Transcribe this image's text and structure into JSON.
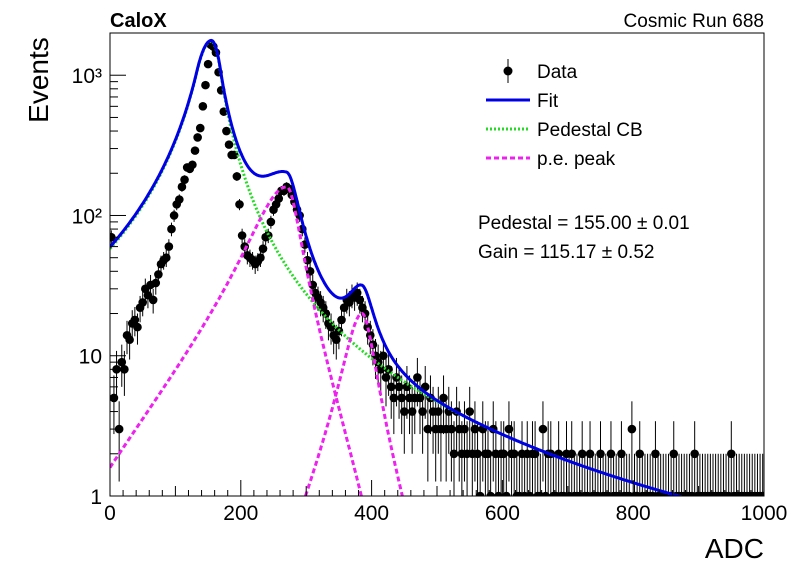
{
  "header": {
    "left_label": "CaloX",
    "right_label": "Cosmic Run 688"
  },
  "chart_data": {
    "type": "scatter",
    "title": "",
    "xlabel": "ADC",
    "ylabel": "Events",
    "xlim": [
      0,
      1000
    ],
    "ylim": [
      1,
      2000
    ],
    "y_scale": "log",
    "grid": false,
    "legend_position": "top-right",
    "x_ticks": [
      {
        "value": 0,
        "label": "0"
      },
      {
        "value": 200,
        "label": "200"
      },
      {
        "value": 400,
        "label": "400"
      },
      {
        "value": 600,
        "label": "600"
      },
      {
        "value": 800,
        "label": "800"
      },
      {
        "value": 1000,
        "label": "1000"
      }
    ],
    "y_ticks": [
      {
        "value": 1,
        "label": "1"
      },
      {
        "value": 10,
        "label": "10"
      },
      {
        "value": 100,
        "label": "10²"
      },
      {
        "value": 1000,
        "label": "10³"
      }
    ],
    "legend": [
      {
        "key": "data",
        "label": "Data",
        "color": "#000000",
        "style": "marker"
      },
      {
        "key": "fit",
        "label": "Fit",
        "color": "#0000e6",
        "style": "solid"
      },
      {
        "key": "pedestal",
        "label": "Pedestal CB",
        "color": "#22dd22",
        "style": "dotted"
      },
      {
        "key": "pe",
        "label": "p.e. peak",
        "color": "#ee22ee",
        "style": "dashed"
      }
    ],
    "annotations": [
      {
        "key": "pedestal",
        "text": "Pedestal = 155.00 ± 0.01"
      },
      {
        "key": "gain",
        "text": "Gain = 115.17 ± 0.52"
      }
    ],
    "fit_model": {
      "pedestal": {
        "A": 1750,
        "mean": 155.0,
        "sigma_left": 22,
        "sigma_right": 14,
        "alpha": 1.0,
        "n": 2.2
      },
      "pe_peaks": [
        {
          "A": 160,
          "mean": 270.2,
          "sigma_left": 55,
          "sigma_right": 21
        },
        {
          "A": 20,
          "mean": 385.3,
          "sigma_left": 28,
          "sigma_right": 20
        }
      ]
    },
    "series": [
      {
        "key": "data",
        "name": "Data",
        "points": [
          [
            2,
            70
          ],
          [
            6,
            5
          ],
          [
            10,
            8
          ],
          [
            14,
            3
          ],
          [
            18,
            9
          ],
          [
            22,
            8
          ],
          [
            26,
            14
          ],
          [
            30,
            13
          ],
          [
            34,
            17
          ],
          [
            38,
            18
          ],
          [
            42,
            16
          ],
          [
            46,
            22
          ],
          [
            50,
            24
          ],
          [
            54,
            30
          ],
          [
            58,
            27
          ],
          [
            62,
            32
          ],
          [
            66,
            25
          ],
          [
            70,
            33
          ],
          [
            74,
            38
          ],
          [
            78,
            45
          ],
          [
            82,
            48
          ],
          [
            86,
            50
          ],
          [
            90,
            60
          ],
          [
            94,
            80
          ],
          [
            98,
            100
          ],
          [
            102,
            120
          ],
          [
            106,
            130
          ],
          [
            110,
            160
          ],
          [
            114,
            180
          ],
          [
            118,
            220
          ],
          [
            122,
            215
          ],
          [
            126,
            230
          ],
          [
            130,
            290
          ],
          [
            134,
            360
          ],
          [
            138,
            420
          ],
          [
            142,
            600
          ],
          [
            146,
            850
          ],
          [
            150,
            1200
          ],
          [
            154,
            1650
          ],
          [
            158,
            1600
          ],
          [
            162,
            1450
          ],
          [
            166,
            1050
          ],
          [
            170,
            780
          ],
          [
            174,
            550
          ],
          [
            178,
            400
          ],
          [
            182,
            320
          ],
          [
            186,
            270
          ],
          [
            190,
            270
          ],
          [
            194,
            190
          ],
          [
            198,
            120
          ],
          [
            202,
            72
          ],
          [
            206,
            60
          ],
          [
            210,
            52
          ],
          [
            214,
            50
          ],
          [
            218,
            48
          ],
          [
            222,
            45
          ],
          [
            226,
            47
          ],
          [
            230,
            50
          ],
          [
            234,
            58
          ],
          [
            238,
            70
          ],
          [
            242,
            72
          ],
          [
            246,
            90
          ],
          [
            250,
            110
          ],
          [
            254,
            120
          ],
          [
            258,
            132
          ],
          [
            262,
            150
          ],
          [
            266,
            150
          ],
          [
            270,
            160
          ],
          [
            274,
            155
          ],
          [
            278,
            140
          ],
          [
            282,
            125
          ],
          [
            286,
            110
          ],
          [
            290,
            100
          ],
          [
            294,
            80
          ],
          [
            298,
            62
          ],
          [
            302,
            48
          ],
          [
            306,
            40
          ],
          [
            310,
            32
          ],
          [
            314,
            28
          ],
          [
            318,
            26
          ],
          [
            322,
            24
          ],
          [
            326,
            22
          ],
          [
            330,
            20
          ],
          [
            334,
            17
          ],
          [
            338,
            16
          ],
          [
            342,
            14
          ],
          [
            346,
            13
          ],
          [
            350,
            15
          ],
          [
            354,
            18
          ],
          [
            358,
            22
          ],
          [
            362,
            25
          ],
          [
            366,
            24
          ],
          [
            370,
            27
          ],
          [
            374,
            26
          ],
          [
            378,
            28
          ],
          [
            382,
            25
          ],
          [
            386,
            22
          ],
          [
            390,
            20
          ],
          [
            394,
            16
          ],
          [
            398,
            14
          ],
          [
            402,
            12
          ],
          [
            406,
            10
          ],
          [
            410,
            9
          ],
          [
            414,
            8
          ],
          [
            418,
            10
          ],
          [
            422,
            7
          ],
          [
            426,
            8
          ],
          [
            430,
            6
          ],
          [
            434,
            5
          ],
          [
            438,
            7
          ],
          [
            442,
            6
          ],
          [
            446,
            5
          ],
          [
            450,
            4
          ],
          [
            454,
            6
          ],
          [
            458,
            5
          ],
          [
            462,
            4
          ],
          [
            466,
            5
          ],
          [
            470,
            7
          ],
          [
            474,
            5
          ],
          [
            478,
            4
          ],
          [
            482,
            6
          ],
          [
            486,
            3
          ],
          [
            490,
            5
          ],
          [
            494,
            4
          ],
          [
            498,
            3
          ],
          [
            502,
            4
          ],
          [
            506,
            3
          ],
          [
            510,
            5
          ],
          [
            514,
            3
          ],
          [
            518,
            4
          ],
          [
            522,
            3
          ],
          [
            526,
            2
          ],
          [
            530,
            4
          ],
          [
            534,
            3
          ],
          [
            538,
            2
          ],
          [
            542,
            3
          ],
          [
            546,
            2
          ],
          [
            550,
            4
          ],
          [
            554,
            2
          ],
          [
            558,
            3
          ],
          [
            562,
            2
          ],
          [
            566,
            1
          ],
          [
            570,
            3
          ],
          [
            574,
            2
          ],
          [
            578,
            2
          ],
          [
            582,
            1
          ],
          [
            586,
            3
          ],
          [
            590,
            2
          ],
          [
            594,
            1
          ],
          [
            598,
            2
          ],
          [
            602,
            2
          ],
          [
            606,
            1
          ],
          [
            610,
            3
          ],
          [
            614,
            2
          ],
          [
            618,
            2
          ],
          [
            622,
            1
          ],
          [
            626,
            1
          ],
          [
            630,
            2
          ],
          [
            634,
            1
          ],
          [
            638,
            2
          ],
          [
            642,
            1
          ],
          [
            646,
            2
          ],
          [
            650,
            2
          ],
          [
            654,
            1
          ],
          [
            658,
            1
          ],
          [
            662,
            3
          ],
          [
            666,
            1
          ],
          [
            670,
            2
          ],
          [
            674,
            2
          ],
          [
            678,
            1
          ],
          [
            682,
            1
          ],
          [
            686,
            2
          ],
          [
            690,
            1
          ],
          [
            694,
            1
          ],
          [
            698,
            2
          ],
          [
            702,
            1
          ],
          [
            706,
            2
          ],
          [
            710,
            1
          ],
          [
            714,
            1
          ],
          [
            718,
            1
          ],
          [
            722,
            2
          ],
          [
            726,
            1
          ],
          [
            730,
            1
          ],
          [
            734,
            2
          ],
          [
            738,
            1
          ],
          [
            742,
            1
          ],
          [
            746,
            1
          ],
          [
            750,
            2
          ],
          [
            754,
            1
          ],
          [
            758,
            1
          ],
          [
            762,
            1
          ],
          [
            766,
            2
          ],
          [
            770,
            1
          ],
          [
            774,
            1
          ],
          [
            778,
            1
          ],
          [
            782,
            2
          ],
          [
            786,
            1
          ],
          [
            790,
            1
          ],
          [
            794,
            1
          ],
          [
            798,
            3
          ],
          [
            802,
            1
          ],
          [
            806,
            1
          ],
          [
            810,
            2
          ],
          [
            814,
            1
          ],
          [
            818,
            1
          ],
          [
            822,
            1
          ],
          [
            826,
            1
          ],
          [
            830,
            1
          ],
          [
            834,
            2
          ],
          [
            838,
            1
          ],
          [
            842,
            1
          ],
          [
            846,
            1
          ],
          [
            850,
            1
          ],
          [
            854,
            1
          ],
          [
            858,
            1
          ],
          [
            862,
            2
          ],
          [
            866,
            1
          ],
          [
            870,
            1
          ],
          [
            874,
            1
          ],
          [
            878,
            1
          ],
          [
            882,
            1
          ],
          [
            886,
            1
          ],
          [
            890,
            1
          ],
          [
            894,
            2
          ],
          [
            898,
            1
          ],
          [
            902,
            1
          ],
          [
            906,
            1
          ],
          [
            910,
            1
          ],
          [
            914,
            1
          ],
          [
            918,
            1
          ],
          [
            922,
            1
          ],
          [
            926,
            1
          ],
          [
            930,
            1
          ],
          [
            934,
            1
          ],
          [
            938,
            1
          ],
          [
            942,
            1
          ],
          [
            946,
            1
          ],
          [
            950,
            2
          ],
          [
            954,
            1
          ],
          [
            958,
            1
          ],
          [
            962,
            1
          ],
          [
            966,
            1
          ],
          [
            970,
            1
          ],
          [
            974,
            1
          ],
          [
            978,
            1
          ],
          [
            982,
            1
          ],
          [
            986,
            1
          ],
          [
            990,
            1
          ],
          [
            994,
            1
          ],
          [
            998,
            1
          ]
        ]
      }
    ]
  }
}
